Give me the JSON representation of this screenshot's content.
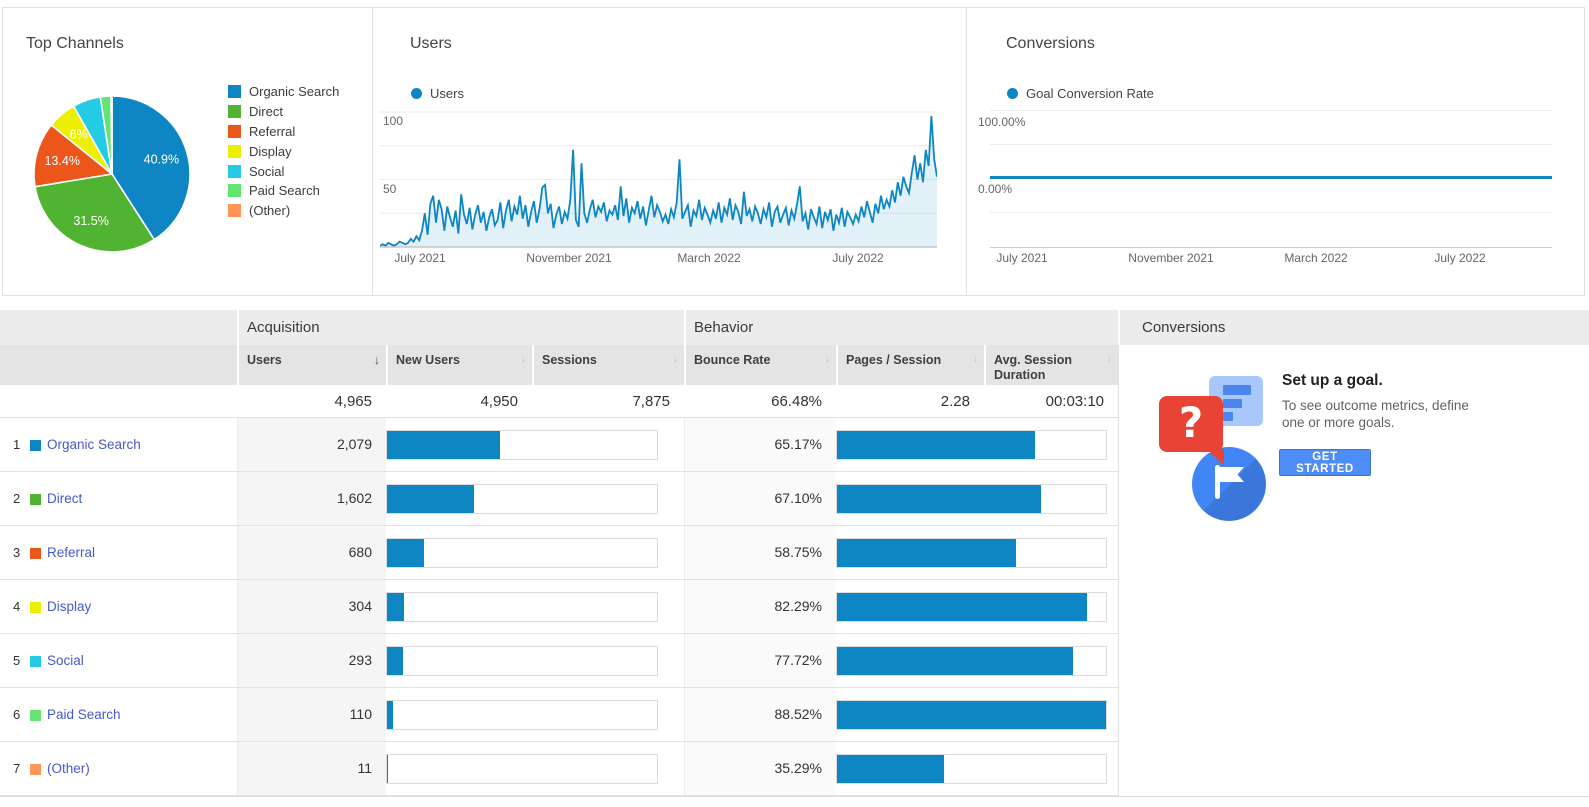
{
  "top_channels": {
    "title": "Top Channels",
    "legend": [
      {
        "label": "Organic Search",
        "color": "#0d86c3"
      },
      {
        "label": "Direct",
        "color": "#50b432"
      },
      {
        "label": "Referral",
        "color": "#ed561b"
      },
      {
        "label": "Display",
        "color": "#edef00"
      },
      {
        "label": "Social",
        "color": "#24cbe5"
      },
      {
        "label": "Paid Search",
        "color": "#64e572"
      },
      {
        "label": "(Other)",
        "color": "#ff9655"
      }
    ]
  },
  "users_card": {
    "title": "Users",
    "legend_label": "Users",
    "y_ticks": [
      "100",
      "50"
    ],
    "x_ticks": [
      "July 2021",
      "November 2021",
      "March 2022",
      "July 2022"
    ]
  },
  "conversions_card": {
    "title": "Conversions",
    "legend_label": "Goal Conversion Rate",
    "y_tick_top": "100.00%",
    "y_tick_zero": "0.00%",
    "x_ticks": [
      "July 2021",
      "November 2021",
      "March 2022",
      "July 2022"
    ]
  },
  "table": {
    "group_headers": [
      "Acquisition",
      "Behavior",
      "Conversions"
    ],
    "columns": [
      {
        "label": "Users",
        "sorted": true
      },
      {
        "label": "New Users",
        "sorted": false
      },
      {
        "label": "Sessions",
        "sorted": false
      },
      {
        "label": "Bounce Rate",
        "sorted": false
      },
      {
        "label": "Pages / Session",
        "sorted": false
      },
      {
        "label": "Avg. Session Duration",
        "sorted": false
      }
    ],
    "totals": {
      "users": "4,965",
      "new_users": "4,950",
      "sessions": "7,875",
      "bounce_rate": "66.48%",
      "pages_per_session": "2.28",
      "avg_session_duration": "00:03:10"
    },
    "users_bar_denominator": 4965,
    "rows": [
      {
        "index": "1",
        "channel": "Organic Search",
        "color": "#0d86c3",
        "users": "2,079",
        "users_value": 2079,
        "bounce_rate": "65.17%",
        "bounce_value": 65.17
      },
      {
        "index": "2",
        "channel": "Direct",
        "color": "#50b432",
        "users": "1,602",
        "users_value": 1602,
        "bounce_rate": "67.10%",
        "bounce_value": 67.1
      },
      {
        "index": "3",
        "channel": "Referral",
        "color": "#ed561b",
        "users": "680",
        "users_value": 680,
        "bounce_rate": "58.75%",
        "bounce_value": 58.75
      },
      {
        "index": "4",
        "channel": "Display",
        "color": "#edef00",
        "users": "304",
        "users_value": 304,
        "bounce_rate": "82.29%",
        "bounce_value": 82.29
      },
      {
        "index": "5",
        "channel": "Social",
        "color": "#24cbe5",
        "users": "293",
        "users_value": 293,
        "bounce_rate": "77.72%",
        "bounce_value": 77.72
      },
      {
        "index": "6",
        "channel": "Paid Search",
        "color": "#64e572",
        "users": "110",
        "users_value": 110,
        "bounce_rate": "88.52%",
        "bounce_value": 88.52
      },
      {
        "index": "7",
        "channel": "(Other)",
        "color": "#ff9655",
        "users": "11",
        "users_value": 11,
        "bounce_rate": "35.29%",
        "bounce_value": 35.29
      }
    ]
  },
  "goal_promo": {
    "heading": "Set up a goal.",
    "body_line1": "To see outcome metrics, define",
    "body_line2": "one or more goals.",
    "button": "GET STARTED"
  },
  "chart_data": [
    {
      "type": "pie",
      "title": "Top Channels",
      "labels": [
        "Organic Search",
        "Direct",
        "Referral",
        "Display",
        "Social",
        "Paid Search",
        "(Other)"
      ],
      "values": [
        40.9,
        31.5,
        13.4,
        6.0,
        5.8,
        2.2,
        0.2
      ],
      "colors": [
        "#0d86c3",
        "#50b432",
        "#ed561b",
        "#edef00",
        "#24cbe5",
        "#64e572",
        "#ff9655"
      ],
      "slice_labels": [
        "40.9%",
        "31.5%",
        "13.4%",
        "6%",
        null,
        null,
        null
      ],
      "legend_position": "right",
      "start_angle_deg": 0,
      "direction": "clockwise"
    },
    {
      "type": "line",
      "title": "Users",
      "xlabel": "",
      "ylabel": "",
      "ylim": [
        0,
        100
      ],
      "y_ticks": [
        50,
        100
      ],
      "x_ticks": [
        "July 2021",
        "November 2021",
        "March 2022",
        "July 2022"
      ],
      "line_color": "#0d86c3",
      "area_fill": true,
      "series": [
        {
          "name": "Users",
          "values": [
            1,
            2,
            1,
            3,
            2,
            1,
            2,
            4,
            3,
            2,
            3,
            6,
            4,
            8,
            5,
            12,
            25,
            9,
            32,
            38,
            18,
            35,
            28,
            12,
            30,
            22,
            15,
            27,
            10,
            39,
            24,
            17,
            29,
            13,
            24,
            31,
            18,
            26,
            12,
            22,
            28,
            16,
            20,
            33,
            14,
            27,
            35,
            19,
            30,
            24,
            38,
            21,
            31,
            15,
            26,
            34,
            18,
            28,
            44,
            46,
            25,
            32,
            14,
            24,
            30,
            17,
            26,
            21,
            35,
            72,
            20,
            15,
            62,
            25,
            18,
            28,
            35,
            22,
            30,
            26,
            33,
            19,
            27,
            24,
            31,
            20,
            45,
            23,
            36,
            18,
            29,
            25,
            34,
            21,
            30,
            16,
            27,
            38,
            22,
            31,
            26,
            19,
            24,
            17,
            28,
            22,
            33,
            65,
            21,
            26,
            31,
            15,
            27,
            23,
            35,
            20,
            29,
            24,
            18,
            27,
            21,
            33,
            18,
            29,
            24,
            36,
            20,
            31,
            26,
            17,
            41,
            23,
            28,
            19,
            30,
            25,
            17,
            28,
            22,
            33,
            15,
            26,
            30,
            18,
            24,
            29,
            16,
            27,
            21,
            32,
            45,
            19,
            25,
            13,
            28,
            22,
            17,
            30,
            14,
            26,
            20,
            28,
            12,
            24,
            18,
            29,
            15,
            26,
            22,
            17,
            24,
            19,
            30,
            22,
            34,
            26,
            18,
            32,
            25,
            38,
            28,
            35,
            30,
            42,
            33,
            48,
            38,
            52,
            45,
            40,
            55,
            68,
            50,
            62,
            48,
            72,
            60,
            97,
            65,
            52
          ]
        }
      ]
    },
    {
      "type": "line",
      "title": "Conversions",
      "ylim": [
        -100,
        100
      ],
      "y_tick_labels": [
        "100.00%",
        "0.00%"
      ],
      "x_ticks": [
        "July 2021",
        "November 2021",
        "March 2022",
        "July 2022"
      ],
      "line_color": "#0d86c3",
      "series": [
        {
          "name": "Goal Conversion Rate",
          "values": [
            0,
            0,
            0,
            0
          ],
          "note": "flat at 0.00% across full range"
        }
      ]
    }
  ]
}
